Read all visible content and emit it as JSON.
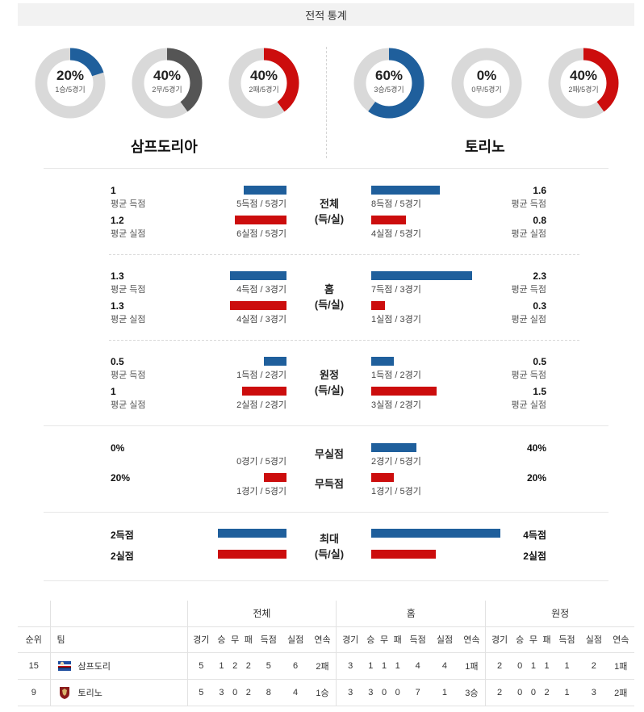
{
  "header": {
    "title": "전적 통계"
  },
  "colors": {
    "blue": "#1f5f9c",
    "red": "#cc0d0d",
    "gray": "#555555",
    "track": "#d9d9d9"
  },
  "home": {
    "name": "삼프도리아",
    "donuts": [
      {
        "pct": "20%",
        "sub": "1승/5경기",
        "value": 0.2,
        "color": "#1f5f9c"
      },
      {
        "pct": "40%",
        "sub": "2무/5경기",
        "value": 0.4,
        "color": "#555555"
      },
      {
        "pct": "40%",
        "sub": "2패/5경기",
        "value": 0.4,
        "color": "#cc0d0d"
      }
    ]
  },
  "away": {
    "name": "토리노",
    "donuts": [
      {
        "pct": "60%",
        "sub": "3승/5경기",
        "value": 0.6,
        "color": "#1f5f9c"
      },
      {
        "pct": "0%",
        "sub": "0무/5경기",
        "value": 0.0,
        "color": "#555555"
      },
      {
        "pct": "40%",
        "sub": "2패/5경기",
        "value": 0.4,
        "color": "#cc0d0d"
      }
    ]
  },
  "sections": [
    {
      "label1": "전체",
      "label2": "(득/실)",
      "rows": [
        {
          "lval": "1",
          "llbl": "평균 득점",
          "lcap": "5득점 / 5경기",
          "lfrac": 0.38,
          "rval": "1.6",
          "rlbl": "평균 득점",
          "rcap": "8득점 / 5경기",
          "rfrac": 0.61,
          "color": "blue"
        },
        {
          "lval": "1.2",
          "llbl": "평균 실점",
          "lcap": "6실점 / 5경기",
          "lfrac": 0.46,
          "rval": "0.8",
          "rlbl": "평균 실점",
          "rcap": "4실점 / 5경기",
          "rfrac": 0.31,
          "color": "red"
        }
      ]
    },
    {
      "label1": "홈",
      "label2": "(득/실)",
      "rows": [
        {
          "lval": "1.3",
          "llbl": "평균 득점",
          "lcap": "4득점 / 3경기",
          "lfrac": 0.5,
          "rval": "2.3",
          "rlbl": "평균 득점",
          "rcap": "7득점 / 3경기",
          "rfrac": 0.89,
          "color": "blue"
        },
        {
          "lval": "1.3",
          "llbl": "평균 실점",
          "lcap": "4실점 / 3경기",
          "lfrac": 0.5,
          "rval": "0.3",
          "rlbl": "평균 실점",
          "rcap": "1실점 / 3경기",
          "rfrac": 0.12,
          "color": "red"
        }
      ]
    },
    {
      "label1": "원정",
      "label2": "(득/실)",
      "rows": [
        {
          "lval": "0.5",
          "llbl": "평균 득점",
          "lcap": "1득점 / 2경기",
          "lfrac": 0.2,
          "rval": "0.5",
          "rlbl": "평균 득점",
          "rcap": "1득점 / 2경기",
          "rfrac": 0.2,
          "color": "blue"
        },
        {
          "lval": "1",
          "llbl": "평균 실점",
          "lcap": "2실점 / 2경기",
          "lfrac": 0.39,
          "rval": "1.5",
          "rlbl": "평균 실점",
          "rcap": "3실점 / 2경기",
          "rfrac": 0.58,
          "color": "red"
        }
      ]
    }
  ],
  "cleansheet": {
    "rows": [
      {
        "label": "무실점",
        "lval": "0%",
        "lcap": "0경기 / 5경기",
        "lfrac": 0.0,
        "rval": "40%",
        "rcap": "2경기 / 5경기",
        "rfrac": 0.4,
        "rcolor": "blue",
        "lcolor": "blue"
      },
      {
        "label": "무득점",
        "lval": "20%",
        "lcap": "1경기 / 5경기",
        "lfrac": 0.2,
        "rval": "20%",
        "rcap": "1경기 / 5경기",
        "rfrac": 0.2,
        "rcolor": "red",
        "lcolor": "red"
      }
    ]
  },
  "max": {
    "label1": "최대",
    "label2": "(득/실)",
    "rows": [
      {
        "lval": "2득점",
        "lfrac": 0.5,
        "rval": "4득점",
        "rfrac": 1.0,
        "color": "blue"
      },
      {
        "lval": "2실점",
        "lfrac": 0.5,
        "rval": "2실점",
        "rfrac": 0.5,
        "color": "red"
      }
    ]
  },
  "table": {
    "groups": [
      "전체",
      "홈",
      "원정"
    ],
    "headers": {
      "rank": "순위",
      "team": "팀",
      "cols": [
        "경기",
        "승",
        "무",
        "패",
        "득점",
        "실점",
        "연속"
      ]
    },
    "rows": [
      {
        "rank": "15",
        "team": "삼프도리",
        "logo": "sampdoria-logo",
        "all": [
          "5",
          "1",
          "2",
          "2",
          "5",
          "6",
          "2패"
        ],
        "home": [
          "3",
          "1",
          "1",
          "1",
          "4",
          "4",
          "1패"
        ],
        "away": [
          "2",
          "0",
          "1",
          "1",
          "1",
          "2",
          "1패"
        ]
      },
      {
        "rank": "9",
        "team": "토리노",
        "logo": "torino-logo",
        "all": [
          "5",
          "3",
          "0",
          "2",
          "8",
          "4",
          "1승"
        ],
        "home": [
          "3",
          "3",
          "0",
          "0",
          "7",
          "1",
          "3승"
        ],
        "away": [
          "2",
          "0",
          "0",
          "2",
          "1",
          "3",
          "2패"
        ]
      }
    ]
  }
}
